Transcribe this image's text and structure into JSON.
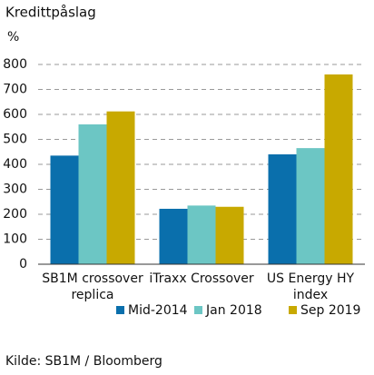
{
  "chart_data": {
    "type": "bar",
    "title": "Kredittpåslag",
    "y_label": "%",
    "categories": [
      "SB1M crossover replica",
      "iTraxx Crossover",
      "US Energy HY index"
    ],
    "series": [
      {
        "name": "Mid-2014",
        "color": "#0a6fac",
        "values": [
          435,
          222,
          440
        ]
      },
      {
        "name": "Jan 2018",
        "color": "#6cc6c4",
        "values": [
          560,
          235,
          465
        ]
      },
      {
        "name": "Sep 2019",
        "color": "#c8a900",
        "values": [
          612,
          230,
          760
        ]
      }
    ],
    "ylim": [
      0,
      800
    ],
    "yticks": [
      0,
      100,
      200,
      300,
      400,
      500,
      600,
      700,
      800
    ],
    "grid": true,
    "source": "Kilde: SB1M / Bloomberg"
  }
}
